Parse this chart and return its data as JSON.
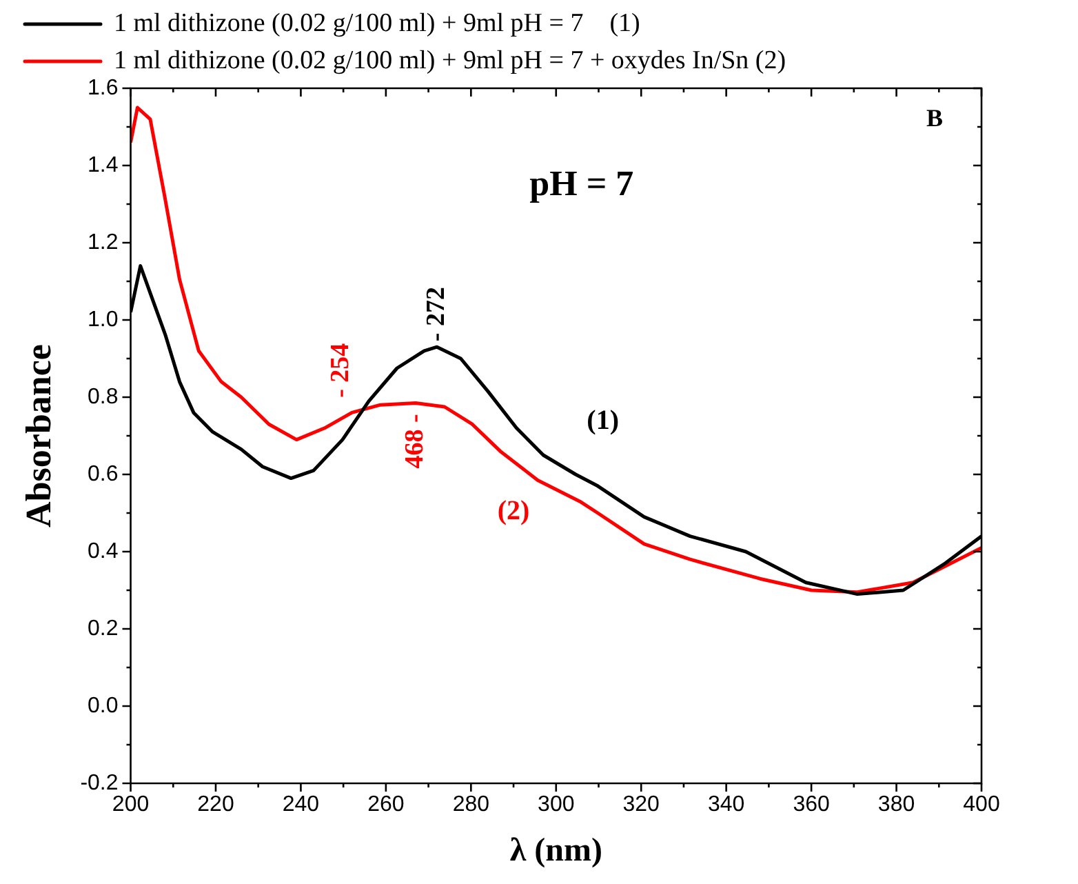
{
  "chart_data": {
    "type": "line",
    "xlabel": "λ (nm)",
    "ylabel": "Absorbance",
    "xlim": [
      200,
      400
    ],
    "ylim": [
      -0.2,
      1.6
    ],
    "xticks": [
      200,
      220,
      240,
      260,
      280,
      300,
      320,
      340,
      360,
      380,
      400
    ],
    "yticks": [
      -0.2,
      {
        "value": 0,
        "label": "0.0"
      },
      0.2,
      0.4,
      0.6,
      0.8,
      {
        "value": 1,
        "label": "1.0"
      },
      1.2,
      1.4,
      1.6
    ],
    "legend": "top",
    "grid": false,
    "marker": "none",
    "line_style": "solid",
    "series": [
      {
        "name": "1 ml dithizone (0.02 g/100 ml) + 9ml pH = 7    (1)",
        "color": "#000000",
        "x": [
          200,
          202.3,
          208.2,
          211.5,
          214.8,
          219.3,
          226,
          231,
          237.7,
          243,
          249.8,
          256,
          262.6,
          269,
          272,
          277.6,
          284,
          290.7,
          297,
          304.6,
          309.8,
          320.7,
          331.5,
          344.6,
          358.7,
          370.8,
          381.6,
          391.5,
          400
        ],
        "values": [
          1.02,
          1.14,
          0.96,
          0.84,
          0.76,
          0.71,
          0.665,
          0.62,
          0.59,
          0.61,
          0.69,
          0.79,
          0.875,
          0.92,
          0.93,
          0.9,
          0.815,
          0.72,
          0.65,
          0.6,
          0.57,
          0.49,
          0.44,
          0.4,
          0.32,
          0.29,
          0.3,
          0.37,
          0.44
        ]
      },
      {
        "name": "1 ml dithizone (0.02 g/100 ml) + 9ml pH = 7 + oxydes In/Sn (2)",
        "color": "#ff0000",
        "x": [
          200,
          201.6,
          204.6,
          208,
          211.5,
          216,
          221.3,
          226,
          232.5,
          239,
          245.6,
          252,
          258.7,
          267,
          273.8,
          280.3,
          286.9,
          295.7,
          305.6,
          309.8,
          320.7,
          331.5,
          347.9,
          360,
          370.8,
          383.9,
          400
        ],
        "values": [
          1.46,
          1.55,
          1.52,
          1.32,
          1.105,
          0.92,
          0.84,
          0.8,
          0.73,
          0.69,
          0.72,
          0.76,
          0.78,
          0.785,
          0.775,
          0.73,
          0.66,
          0.585,
          0.53,
          0.5,
          0.42,
          0.38,
          0.33,
          0.3,
          0.295,
          0.32,
          0.41
        ]
      }
    ],
    "annotations": [
      {
        "text": "- 272",
        "x": 272,
        "y": 0.93
      },
      {
        "text": "- 254",
        "x": 254,
        "y": 0.77
      },
      {
        "text": "468 -",
        "x": 267,
        "y": 0.785
      },
      "(1)",
      "(2)",
      "pH = 7",
      "B"
    ]
  }
}
